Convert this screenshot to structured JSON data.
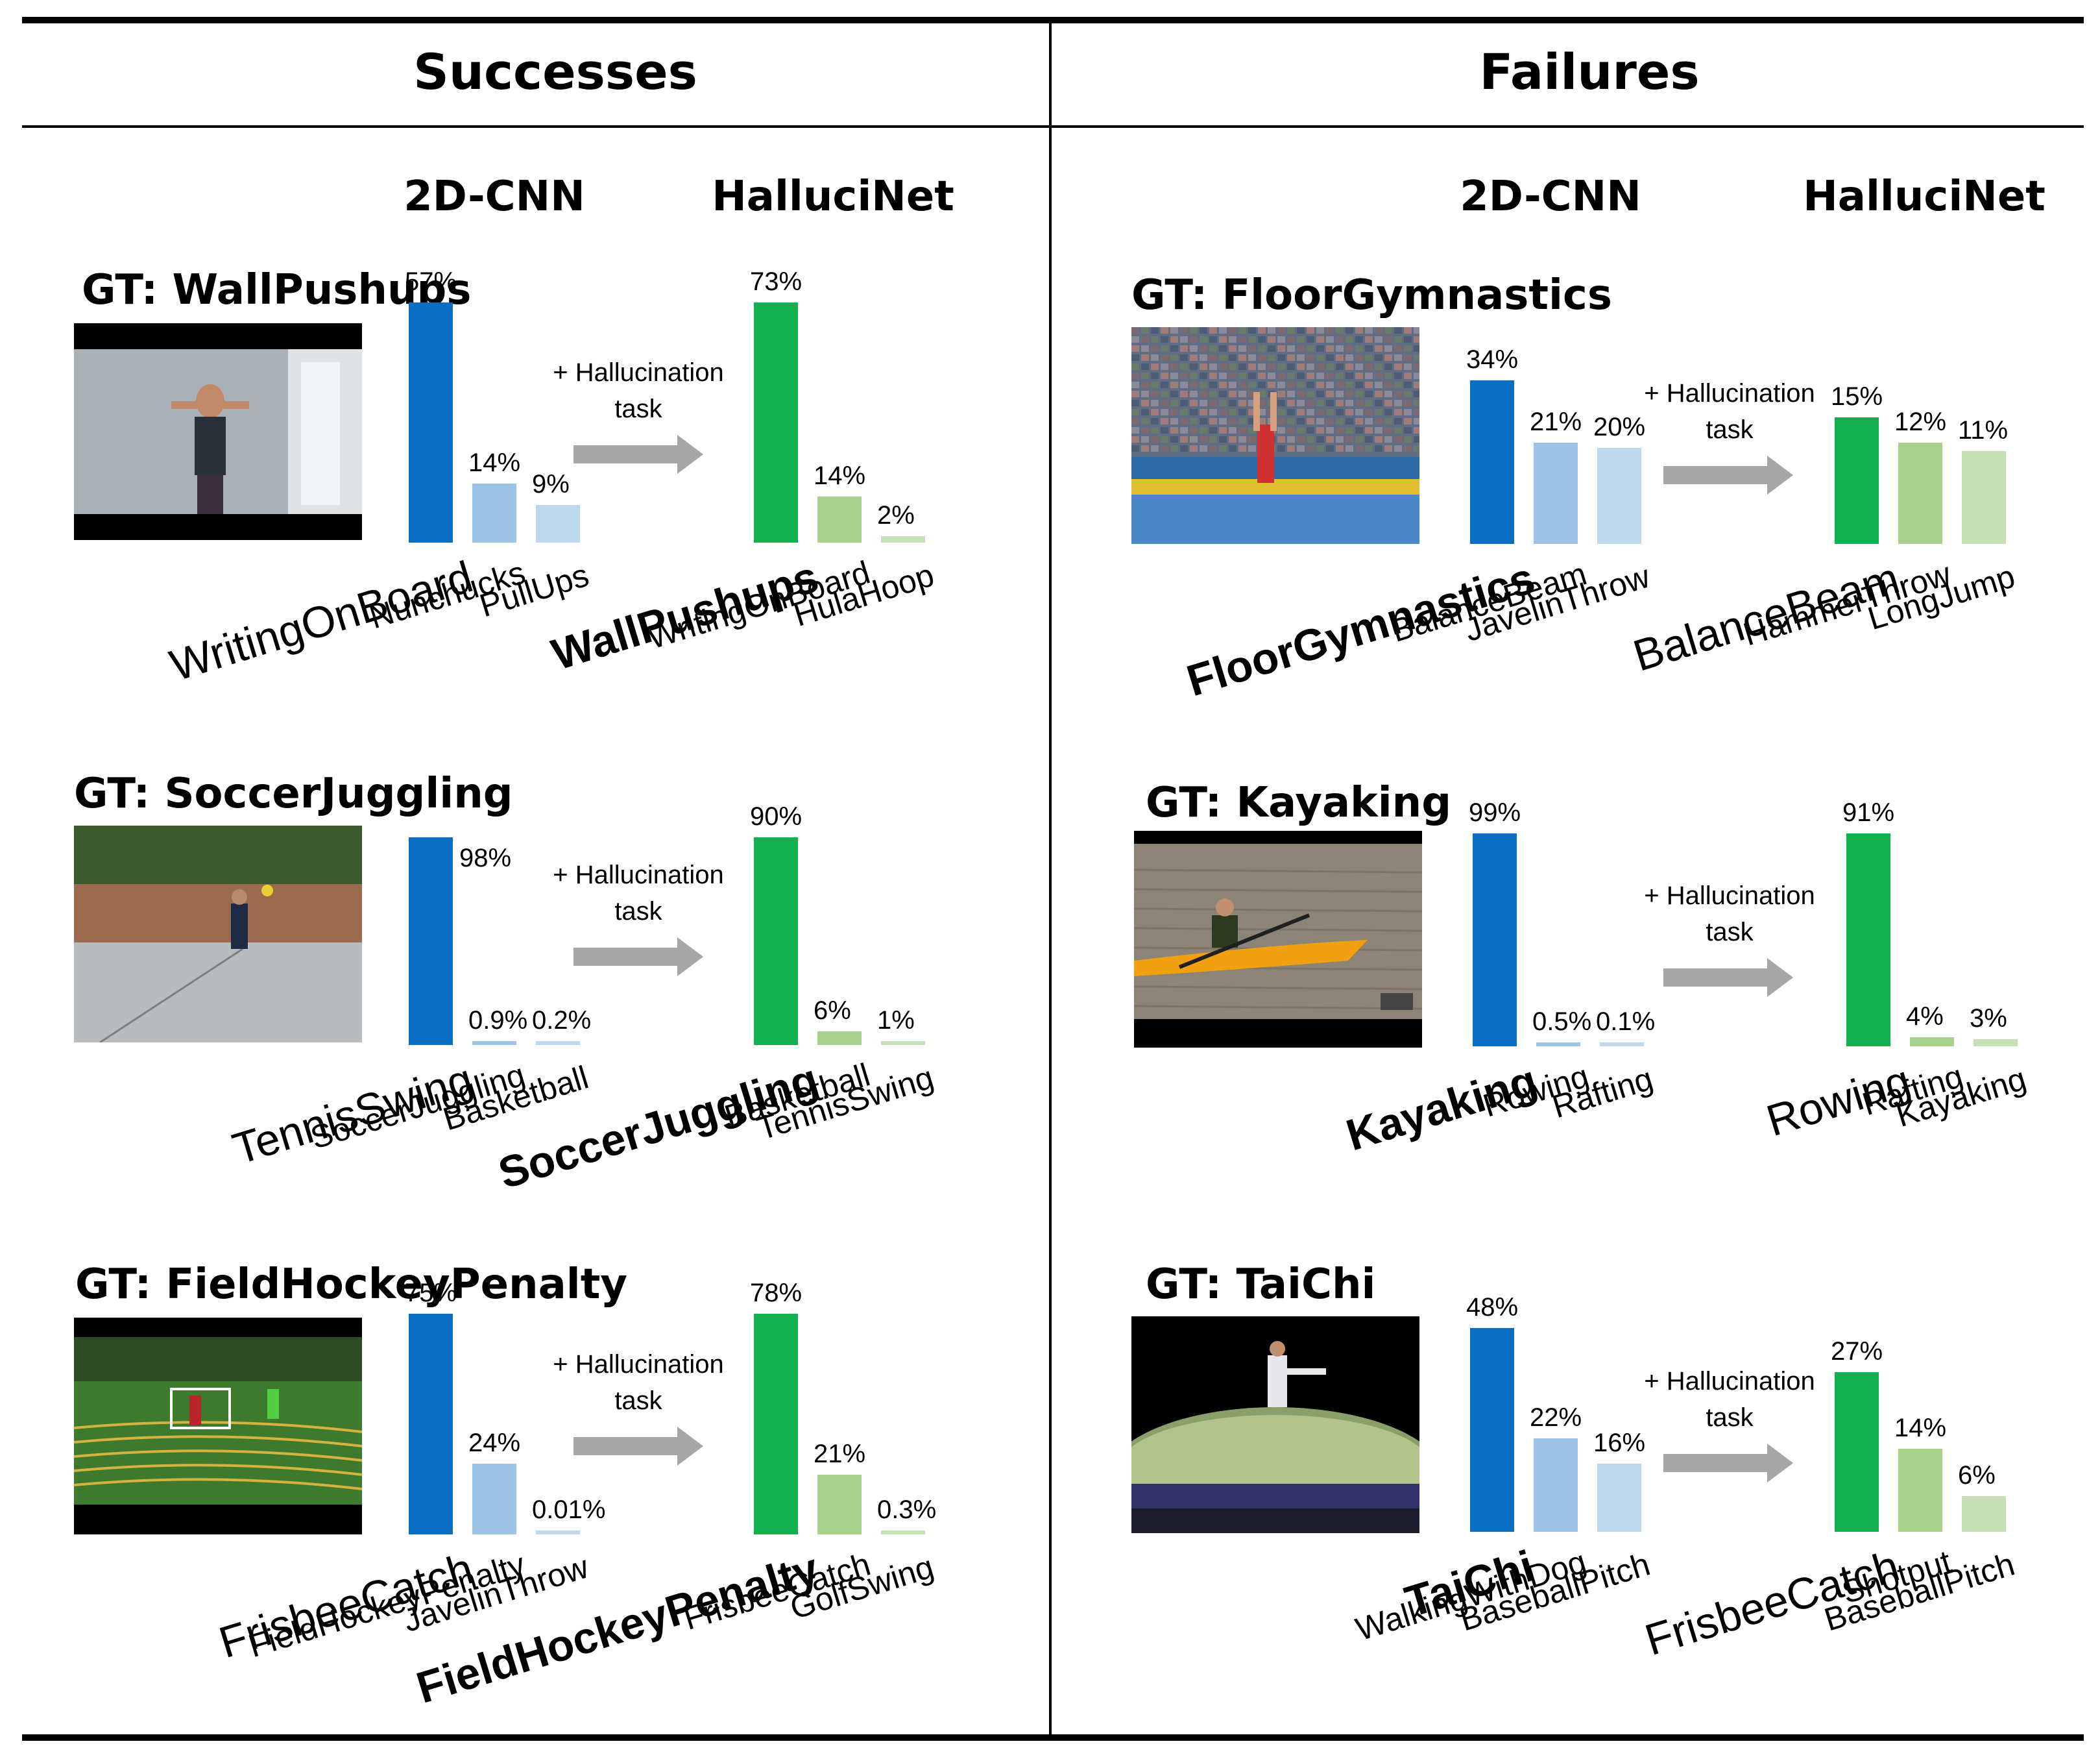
{
  "headers": {
    "successes": "Successes",
    "failures": "Failures"
  },
  "model_a": "2D-CNN",
  "model_b": "HalluciNet",
  "hallucination_text": [
    "+ Hallucination",
    "task"
  ],
  "colors": {
    "cnn": [
      "#0a6fc2",
      "#9dc3e6",
      "#bdd7ee"
    ],
    "hal": [
      "#12b04e",
      "#a9d18e",
      "#c5e0b4"
    ]
  },
  "chart_data": [
    {
      "type": "bar",
      "title": "GT: WallPushups",
      "cnn": {
        "categories": [
          "WritingOnBoard",
          "Nunchucks",
          "PullUps"
        ],
        "values": [
          57,
          14,
          9
        ],
        "labels": [
          "57%",
          "14%",
          "9%"
        ]
      },
      "hal": {
        "categories": [
          "WallPushups",
          "WritingOnBoard",
          "HulaHoop"
        ],
        "values": [
          73,
          14,
          2
        ],
        "labels": [
          "73%",
          "14%",
          "2%"
        ]
      }
    },
    {
      "type": "bar",
      "title": "GT: SoccerJuggling",
      "cnn": {
        "categories": [
          "TennisSwing",
          "SoccerJuggling",
          "Basketball"
        ],
        "values": [
          98,
          0.9,
          0.2
        ],
        "labels": [
          "98%",
          "0.9%",
          "0.2%"
        ]
      },
      "hal": {
        "categories": [
          "SoccerJuggling",
          "Basketball",
          "TennisSwing"
        ],
        "values": [
          90,
          6,
          1
        ],
        "labels": [
          "90%",
          "6%",
          "1%"
        ]
      }
    },
    {
      "type": "bar",
      "title": "GT: FieldHockeyPenalty",
      "cnn": {
        "categories": [
          "FrisbeeCatch",
          "FieldHockeyPenalty",
          "JavelinThrow"
        ],
        "values": [
          75,
          24,
          0.01
        ],
        "labels": [
          "75%",
          "24%",
          "0.01%"
        ]
      },
      "hal": {
        "categories": [
          "FieldHockeyPenalty",
          "FrisbeeCatch",
          "GolfSwing"
        ],
        "values": [
          78,
          21,
          0.3
        ],
        "labels": [
          "78%",
          "21%",
          "0.3%"
        ]
      }
    },
    {
      "type": "bar",
      "title": "GT: FloorGymnastics",
      "cnn": {
        "categories": [
          "FloorGymnastics",
          "BalanceBeam",
          "JavelinThrow"
        ],
        "values": [
          34,
          21,
          20
        ],
        "labels": [
          "34%",
          "21%",
          "20%"
        ]
      },
      "hal": {
        "categories": [
          "BalanceBeam",
          "HammerThrow",
          "LongJump"
        ],
        "values": [
          15,
          12,
          11
        ],
        "labels": [
          "15%",
          "12%",
          "11%"
        ]
      }
    },
    {
      "type": "bar",
      "title": "GT: Kayaking",
      "cnn": {
        "categories": [
          "Kayaking",
          "Rowing",
          "Rafting"
        ],
        "values": [
          99,
          0.5,
          0.1
        ],
        "labels": [
          "99%",
          "0.5%",
          "0.1%"
        ]
      },
      "hal": {
        "categories": [
          "Rowing",
          "Rafting",
          "Kayaking"
        ],
        "values": [
          91,
          4,
          3
        ],
        "labels": [
          "91%",
          "4%",
          "3%"
        ]
      }
    },
    {
      "type": "bar",
      "title": "GT: TaiChi",
      "cnn": {
        "categories": [
          "TaiChi",
          "WalkingWithDog",
          "BaseballPitch"
        ],
        "values": [
          48,
          22,
          16
        ],
        "labels": [
          "48%",
          "22%",
          "16%"
        ]
      },
      "hal": {
        "categories": [
          "FrisbeeCatch",
          "Shotput",
          "BaseballPitch"
        ],
        "values": [
          27,
          14,
          6
        ],
        "labels": [
          "27%",
          "14%",
          "6%"
        ]
      }
    }
  ]
}
